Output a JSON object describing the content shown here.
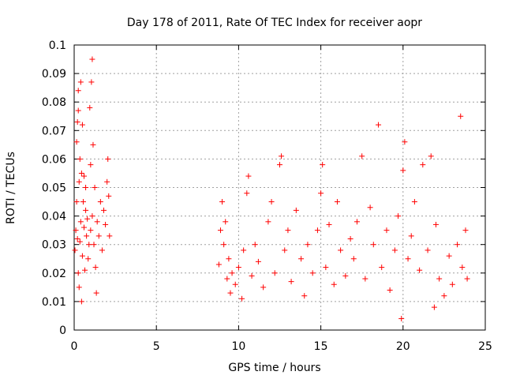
{
  "chart_data": {
    "type": "scatter",
    "title": "Day 178 of 2011, Rate Of TEC Index for receiver aopr",
    "xlabel": "GPS time / hours",
    "ylabel": "ROTI / TECUs",
    "xlim": [
      0,
      25
    ],
    "ylim": [
      0,
      0.1
    ],
    "x_ticks": [
      0,
      5,
      10,
      15,
      20,
      25
    ],
    "x_tick_labels": [
      "0",
      "5",
      "10",
      "15",
      "20",
      "25"
    ],
    "y_ticks": [
      0,
      0.01,
      0.02,
      0.03,
      0.04,
      0.05,
      0.06,
      0.07,
      0.08,
      0.09,
      0.1
    ],
    "y_tick_labels": [
      "0",
      "0.01",
      "0.02",
      "0.03",
      "0.04",
      "0.05",
      "0.06",
      "0.07",
      "0.08",
      "0.09",
      "0.1"
    ],
    "grid": true,
    "marker": "+",
    "marker_color": "#ff0000",
    "series": [
      {
        "values": [
          [
            0.05,
            0.028
          ],
          [
            0.1,
            0.035
          ],
          [
            0.15,
            0.045
          ],
          [
            0.15,
            0.066
          ],
          [
            0.2,
            0.032
          ],
          [
            0.2,
            0.073
          ],
          [
            0.25,
            0.02
          ],
          [
            0.25,
            0.077
          ],
          [
            0.25,
            0.084
          ],
          [
            0.3,
            0.015
          ],
          [
            0.3,
            0.052
          ],
          [
            0.35,
            0.06
          ],
          [
            0.35,
            0.031
          ],
          [
            0.4,
            0.038
          ],
          [
            0.4,
            0.087
          ],
          [
            0.45,
            0.055
          ],
          [
            0.45,
            0.01
          ],
          [
            0.5,
            0.072
          ],
          [
            0.5,
            0.026
          ],
          [
            0.55,
            0.045
          ],
          [
            0.6,
            0.036
          ],
          [
            0.6,
            0.054
          ],
          [
            0.65,
            0.021
          ],
          [
            0.7,
            0.042
          ],
          [
            0.7,
            0.05
          ],
          [
            0.75,
            0.033
          ],
          [
            0.8,
            0.039
          ],
          [
            0.85,
            0.025
          ],
          [
            0.9,
            0.03
          ],
          [
            0.95,
            0.078
          ],
          [
            1.0,
            0.035
          ],
          [
            1.0,
            0.058
          ],
          [
            1.05,
            0.087
          ],
          [
            1.1,
            0.095
          ],
          [
            1.1,
            0.04
          ],
          [
            1.15,
            0.065
          ],
          [
            1.2,
            0.03
          ],
          [
            1.25,
            0.05
          ],
          [
            1.3,
            0.022
          ],
          [
            1.35,
            0.013
          ],
          [
            1.4,
            0.038
          ],
          [
            1.5,
            0.033
          ],
          [
            1.6,
            0.045
          ],
          [
            1.7,
            0.028
          ],
          [
            1.8,
            0.042
          ],
          [
            1.9,
            0.037
          ],
          [
            2.0,
            0.052
          ],
          [
            2.05,
            0.06
          ],
          [
            2.1,
            0.047
          ],
          [
            2.15,
            0.033
          ],
          [
            8.8,
            0.023
          ],
          [
            8.9,
            0.035
          ],
          [
            9.0,
            0.045
          ],
          [
            9.1,
            0.03
          ],
          [
            9.2,
            0.038
          ],
          [
            9.3,
            0.018
          ],
          [
            9.4,
            0.025
          ],
          [
            9.5,
            0.013
          ],
          [
            9.6,
            0.02
          ],
          [
            9.8,
            0.016
          ],
          [
            10.0,
            0.022
          ],
          [
            10.2,
            0.011
          ],
          [
            10.3,
            0.028
          ],
          [
            10.5,
            0.048
          ],
          [
            10.6,
            0.054
          ],
          [
            10.8,
            0.019
          ],
          [
            11.0,
            0.03
          ],
          [
            11.2,
            0.024
          ],
          [
            11.5,
            0.015
          ],
          [
            11.8,
            0.038
          ],
          [
            12.0,
            0.045
          ],
          [
            12.2,
            0.02
          ],
          [
            12.5,
            0.058
          ],
          [
            12.6,
            0.061
          ],
          [
            12.8,
            0.028
          ],
          [
            13.0,
            0.035
          ],
          [
            13.2,
            0.017
          ],
          [
            13.5,
            0.042
          ],
          [
            13.8,
            0.025
          ],
          [
            14.0,
            0.012
          ],
          [
            14.2,
            0.03
          ],
          [
            14.5,
            0.02
          ],
          [
            14.8,
            0.035
          ],
          [
            15.0,
            0.048
          ],
          [
            15.1,
            0.058
          ],
          [
            15.3,
            0.022
          ],
          [
            15.5,
            0.037
          ],
          [
            15.8,
            0.016
          ],
          [
            16.0,
            0.045
          ],
          [
            16.2,
            0.028
          ],
          [
            16.5,
            0.019
          ],
          [
            16.8,
            0.032
          ],
          [
            17.0,
            0.025
          ],
          [
            17.2,
            0.038
          ],
          [
            17.5,
            0.061
          ],
          [
            17.7,
            0.018
          ],
          [
            18.0,
            0.043
          ],
          [
            18.2,
            0.03
          ],
          [
            18.5,
            0.072
          ],
          [
            18.7,
            0.022
          ],
          [
            19.0,
            0.035
          ],
          [
            19.2,
            0.014
          ],
          [
            19.5,
            0.028
          ],
          [
            19.7,
            0.04
          ],
          [
            19.9,
            0.004
          ],
          [
            20.0,
            0.056
          ],
          [
            20.1,
            0.066
          ],
          [
            20.3,
            0.025
          ],
          [
            20.5,
            0.033
          ],
          [
            20.7,
            0.045
          ],
          [
            21.0,
            0.021
          ],
          [
            21.2,
            0.058
          ],
          [
            21.5,
            0.028
          ],
          [
            21.7,
            0.061
          ],
          [
            21.9,
            0.008
          ],
          [
            22.0,
            0.037
          ],
          [
            22.2,
            0.018
          ],
          [
            22.5,
            0.012
          ],
          [
            22.8,
            0.026
          ],
          [
            23.0,
            0.016
          ],
          [
            23.3,
            0.03
          ],
          [
            23.5,
            0.075
          ],
          [
            23.6,
            0.022
          ],
          [
            23.8,
            0.035
          ],
          [
            23.9,
            0.018
          ]
        ]
      }
    ]
  }
}
